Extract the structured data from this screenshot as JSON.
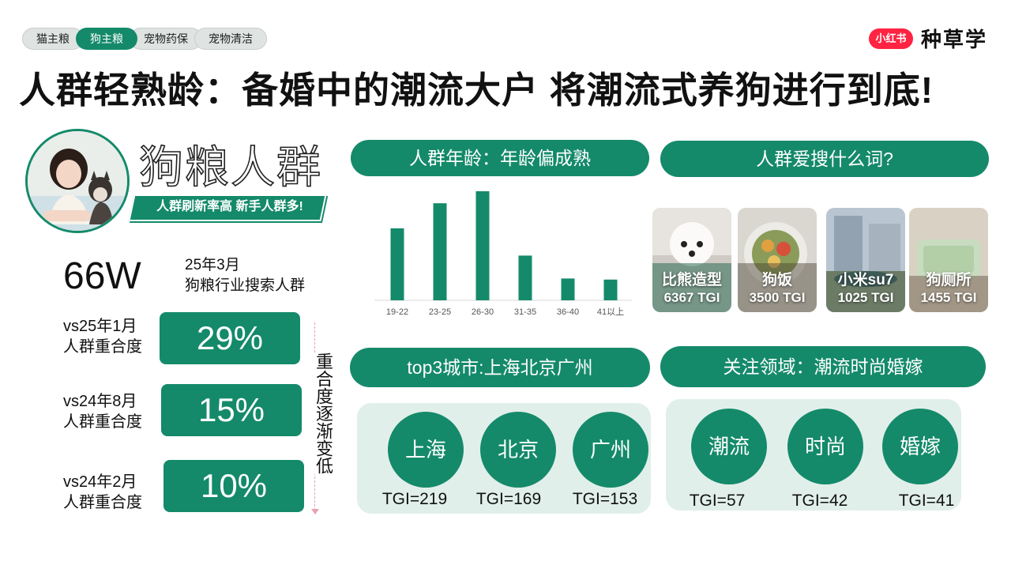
{
  "tabs": [
    {
      "label": "猫主粮"
    },
    {
      "label": "狗主粮"
    },
    {
      "label": "宠物药保"
    },
    {
      "label": "宠物清洁"
    }
  ],
  "brand": {
    "logo_text": "小红书",
    "name": "种草学",
    "accent": "#ff2442"
  },
  "page_title": "人群轻熟龄：备婚中的潮流大户 将潮流式养狗进行到底!",
  "segment": {
    "title": "狗粮人群",
    "banner": "人群刷新率高 新手人群多!"
  },
  "stats": {
    "big_number": "66W",
    "label_line1": "25年3月",
    "label_line2": "狗粮行业搜索人群"
  },
  "overlaps": [
    {
      "line1": "vs25年1月",
      "line2": "人群重合度",
      "value": "29%"
    },
    {
      "line1": "vs24年8月",
      "line2": "人群重合度",
      "value": "15%"
    },
    {
      "line1": "vs24年2月",
      "line2": "人群重合度",
      "value": "10%"
    }
  ],
  "trend_note": "重合度逐渐变低",
  "age_section": {
    "title": "人群年龄：年龄偏成熟"
  },
  "search_section": {
    "title": "人群爱搜什么词?",
    "cards": [
      {
        "name": "比熊造型",
        "tgi": "6367 TGI"
      },
      {
        "name": "狗饭",
        "tgi": "3500 TGI"
      },
      {
        "name": "小米su7",
        "tgi": "1025 TGI"
      },
      {
        "name": "狗厕所",
        "tgi": "1455 TGI"
      }
    ]
  },
  "city_section": {
    "title": "top3城市:上海北京广州",
    "items": [
      {
        "name": "上海",
        "tgi": "TGI=219"
      },
      {
        "name": "北京",
        "tgi": "TGI=169"
      },
      {
        "name": "广州",
        "tgi": "TGI=153"
      }
    ]
  },
  "interest_section": {
    "title": "关注领域：潮流时尚婚嫁",
    "items": [
      {
        "name": "潮流",
        "tgi": "TGI=57"
      },
      {
        "name": "时尚",
        "tgi": "TGI=42"
      },
      {
        "name": "婚嫁",
        "tgi": "TGI=41"
      }
    ]
  },
  "colors": {
    "primary": "#148a6a",
    "panel": "#e1efea"
  },
  "chart_data": {
    "type": "bar",
    "categories": [
      "19-22",
      "23-25",
      "26-30",
      "31-35",
      "36-40",
      "41以上"
    ],
    "values": [
      66,
      89,
      100,
      41,
      20,
      19
    ],
    "ylim": [
      0,
      100
    ],
    "grid": false,
    "color": "#148a6a"
  }
}
